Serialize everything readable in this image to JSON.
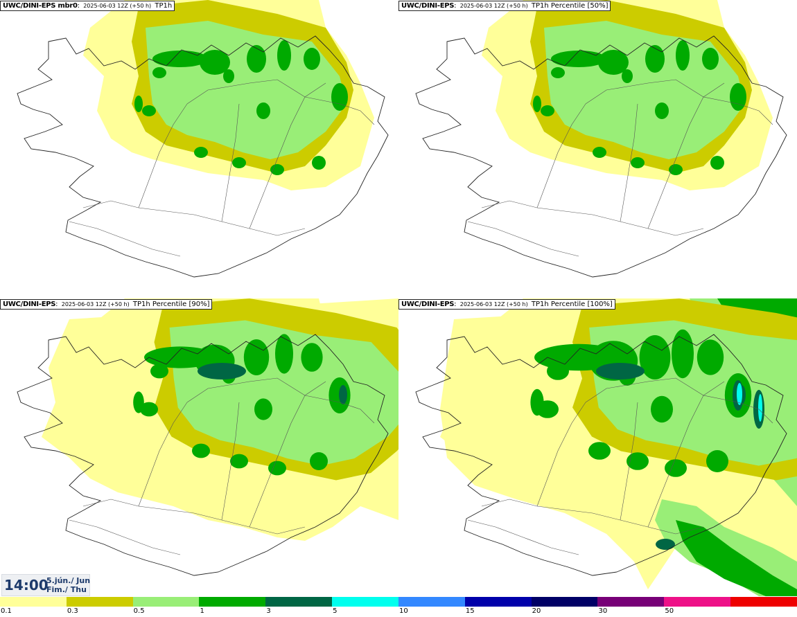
{
  "panels": [
    {
      "model": "UWC/DINI-EPS mbr0",
      "run": "2025-06-03 12Z (+50 h)",
      "param": "TP1h",
      "level": 1
    },
    {
      "model": "UWC/DINI-EPS",
      "run": "2025-06-03 12Z (+50 h)",
      "param": "TP1h Percentile [50%]",
      "level": 1
    },
    {
      "model": "UWC/DINI-EPS",
      "run": "2025-06-03 12Z (+50 h)",
      "param": "TP1h Percentile [90%]",
      "level": 2
    },
    {
      "model": "UWC/DINI-EPS",
      "run": "2025-06-03 12Z (+50 h)",
      "param": "TP1h Percentile [100%]",
      "level": 3
    }
  ],
  "timebox": {
    "time": "14:00",
    "date_line1": "5.jún./ Jun",
    "date_line2": "Fim./ Thu"
  },
  "legend": {
    "colors": [
      "#ffff99",
      "#cccc00",
      "#99ee77",
      "#00aa00",
      "#006644",
      "#00ffee",
      "#3388ff",
      "#0000aa",
      "#000066",
      "#770077",
      "#ee1188",
      "#ee0000"
    ],
    "labels": [
      "0.1",
      "0.3",
      "0.5",
      "1",
      "3",
      "5",
      "10",
      "15",
      "20",
      "30",
      "50"
    ]
  }
}
